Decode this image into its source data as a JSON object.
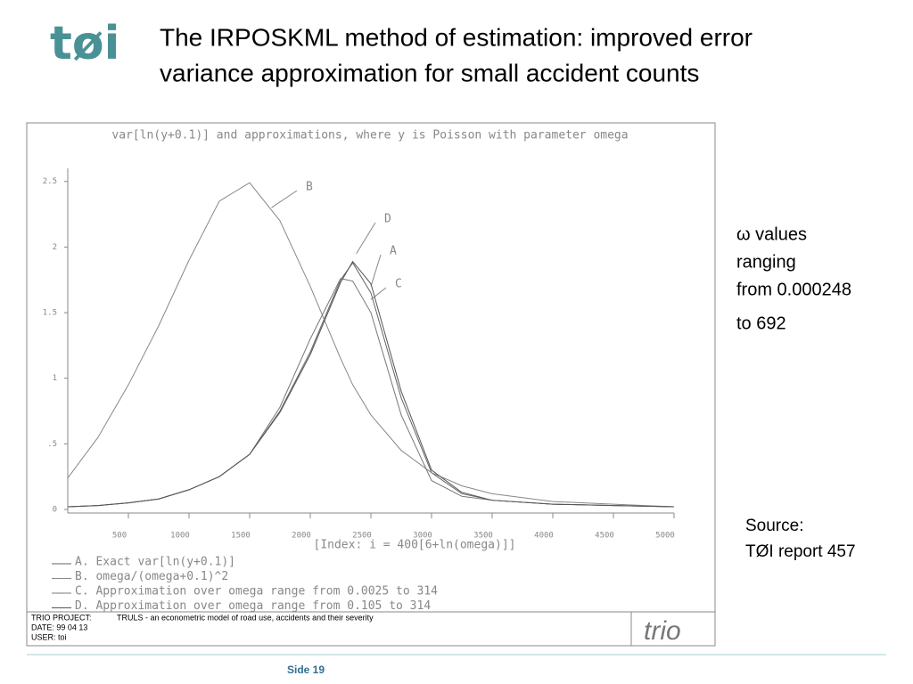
{
  "header": {
    "logo": "tøi",
    "title_lines": [
      "The IRPOSKML method of estimation: improved error",
      "variance approximation for small accident counts"
    ]
  },
  "side_note": {
    "lines": [
      "ω values",
      "ranging",
      "from 0.000248",
      "to 692"
    ]
  },
  "source": {
    "lines": [
      "Source:",
      "TØI report 457"
    ]
  },
  "chart_footer": {
    "project_label": "TRIO PROJECT:",
    "project": "TRULS - an econometric model of road use, accidents and their severity",
    "date": "DATE: 99 04 13",
    "user": "USER: toi",
    "brand": "trio"
  },
  "page_footer": "Side 19",
  "chart_data": {
    "type": "line",
    "title": "var[ln(y+0.1)] and approximations, where y is Poisson with parameter omega",
    "x_label": "[Index:  i = 400[6+ln(omega)]]",
    "x": [
      0,
      250,
      500,
      750,
      1000,
      1250,
      1500,
      1750,
      2000,
      2250,
      2350,
      2500,
      2750,
      3000,
      3250,
      3500,
      4000,
      4500,
      5000
    ],
    "series": [
      {
        "name": "A. Exact var[ln(y+0.1)]",
        "label": "A",
        "color": "#666666",
        "values": [
          0.02,
          0.03,
          0.05,
          0.08,
          0.15,
          0.25,
          0.42,
          0.75,
          1.2,
          1.75,
          1.88,
          1.65,
          0.85,
          0.28,
          0.12,
          0.07,
          0.04,
          0.03,
          0.02
        ]
      },
      {
        "name": "B. omega/(omega+0.1)^2",
        "label": "B",
        "color": "#888888",
        "values": [
          0.24,
          0.55,
          0.95,
          1.4,
          1.9,
          2.35,
          2.49,
          2.2,
          1.7,
          1.15,
          0.95,
          0.72,
          0.45,
          0.28,
          0.18,
          0.12,
          0.06,
          0.04,
          0.02
        ]
      },
      {
        "name": "C. Approximation over omega range from 0.0025 to 314",
        "label": "C",
        "color": "#777777",
        "values": [
          0.02,
          0.03,
          0.05,
          0.08,
          0.15,
          0.25,
          0.42,
          0.78,
          1.3,
          1.76,
          1.74,
          1.5,
          0.72,
          0.22,
          0.1,
          0.07,
          0.04,
          0.03,
          0.02
        ]
      },
      {
        "name": "D. Approximation over omega range from 0.105 to 314",
        "label": "D",
        "color": "#555555",
        "values": [
          0.02,
          0.03,
          0.05,
          0.08,
          0.15,
          0.25,
          0.42,
          0.74,
          1.18,
          1.73,
          1.89,
          1.72,
          0.9,
          0.3,
          0.13,
          0.07,
          0.04,
          0.03,
          0.02
        ]
      }
    ],
    "xlim": [
      0,
      5000
    ],
    "xticks": [
      500,
      1000,
      1500,
      2000,
      2500,
      3000,
      3500,
      4000,
      4500,
      5000
    ],
    "ylim": [
      0,
      2.6
    ],
    "yticks": [
      0,
      {
        "value": 0.5,
        "label": ".5"
      },
      1,
      1.5,
      2,
      2.5
    ]
  }
}
